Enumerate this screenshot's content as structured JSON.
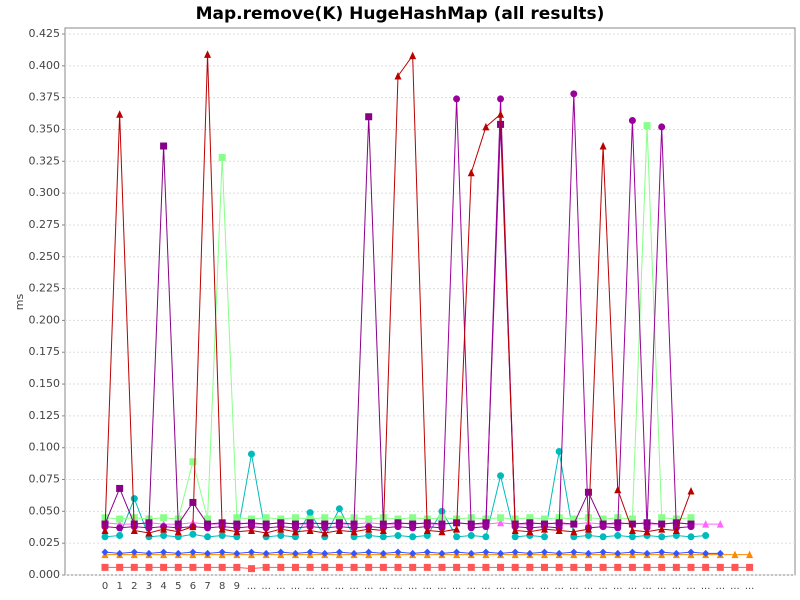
{
  "chart_data": {
    "type": "line",
    "title": "Map.remove(K) HugeHashMap (all results)",
    "y_label": "ms",
    "categories": [
      "0",
      "1",
      "2",
      "3",
      "4",
      "5",
      "6",
      "7",
      "8",
      "9",
      "...",
      "...",
      "...",
      "...",
      "...",
      "...",
      "...",
      "...",
      "...",
      "...",
      "...",
      "...",
      "...",
      "...",
      "...",
      "...",
      "...",
      "...",
      "...",
      "...",
      "...",
      "...",
      "...",
      "...",
      "...",
      "...",
      "...",
      "...",
      "...",
      "...",
      "...",
      "...",
      "...",
      "...",
      "..."
    ],
    "ylim": [
      0,
      0.425
    ],
    "yticks": [
      {
        "value": 0,
        "label": "0.000"
      },
      {
        "value": 0.025,
        "label": "0.025"
      },
      {
        "value": 0.05,
        "label": "0.050"
      },
      {
        "value": 0.075,
        "label": "0.075"
      },
      {
        "value": 0.1,
        "label": "0.100"
      },
      {
        "value": 0.125,
        "label": "0.125"
      },
      {
        "value": 0.15,
        "label": "0.150"
      },
      {
        "value": 0.175,
        "label": "0.175"
      },
      {
        "value": 0.2,
        "label": "0.200"
      },
      {
        "value": 0.225,
        "label": "0.225"
      },
      {
        "value": 0.25,
        "label": "0.250"
      },
      {
        "value": 0.275,
        "label": "0.275"
      },
      {
        "value": 0.3,
        "label": "0.300"
      },
      {
        "value": 0.325,
        "label": "0.325"
      },
      {
        "value": 0.35,
        "label": "0.350"
      },
      {
        "value": 0.375,
        "label": "0.375"
      },
      {
        "value": 0.4,
        "label": "0.400"
      },
      {
        "value": 0.425,
        "label": "0.425"
      }
    ],
    "grid": true,
    "series": [
      {
        "color": "#ff5555",
        "marker": "square",
        "values": [
          0.006,
          0.006,
          0.006,
          0.006,
          0.006,
          0.006,
          0.006,
          0.006,
          0.006,
          0.006,
          0.005,
          0.006,
          0.006,
          0.006,
          0.006,
          0.006,
          0.006,
          0.006,
          0.006,
          0.006,
          0.006,
          0.006,
          0.006,
          0.006,
          0.006,
          0.006,
          0.006,
          0.006,
          0.006,
          0.006,
          0.006,
          0.006,
          0.006,
          0.006,
          0.006,
          0.006,
          0.006,
          0.006,
          0.006,
          0.006,
          0.006,
          0.006,
          0.006,
          0.006,
          0.006
        ]
      },
      {
        "color": "#ff8800",
        "marker": "triangle",
        "values": [
          0.016,
          0.016,
          0.016,
          0.016,
          0.016,
          0.016,
          0.016,
          0.016,
          0.016,
          0.016,
          0.016,
          0.016,
          0.016,
          0.016,
          0.016,
          0.016,
          0.016,
          0.016,
          0.016,
          0.016,
          0.016,
          0.016,
          0.016,
          0.016,
          0.016,
          0.016,
          0.016,
          0.016,
          0.016,
          0.016,
          0.016,
          0.016,
          0.016,
          0.016,
          0.016,
          0.016,
          0.016,
          0.016,
          0.016,
          0.016,
          0.016,
          0.016,
          0.016,
          0.016,
          0.016
        ]
      },
      {
        "color": "#3355ff",
        "marker": "diamond",
        "values": [
          0.018,
          0.017,
          0.018,
          0.017,
          0.018,
          0.017,
          0.018,
          0.017,
          0.018,
          0.017,
          0.018,
          0.017,
          0.018,
          0.017,
          0.018,
          0.017,
          0.018,
          0.017,
          0.018,
          0.017,
          0.018,
          0.017,
          0.018,
          0.017,
          0.018,
          0.017,
          0.018,
          0.017,
          0.018,
          0.017,
          0.018,
          0.017,
          0.018,
          0.017,
          0.018,
          0.017,
          0.018,
          0.017,
          0.018,
          0.017,
          0.018,
          0.017,
          0.017,
          null,
          null
        ]
      },
      {
        "color": "#00bbbb",
        "marker": "circle",
        "values": [
          0.03,
          0.031,
          0.06,
          0.03,
          0.031,
          0.03,
          0.032,
          0.03,
          0.031,
          0.03,
          0.095,
          0.03,
          0.031,
          0.03,
          0.049,
          0.03,
          0.052,
          0.03,
          0.031,
          0.03,
          0.031,
          0.03,
          0.031,
          0.05,
          0.03,
          0.031,
          0.03,
          0.078,
          0.03,
          0.031,
          0.03,
          0.097,
          0.03,
          0.031,
          0.03,
          0.031,
          0.03,
          0.031,
          0.03,
          0.031,
          0.03,
          0.031,
          null,
          null,
          null
        ]
      },
      {
        "color": "#ff66ff",
        "marker": "triangle",
        "values": [
          0.041,
          0.04,
          0.04,
          0.041,
          0.04,
          0.04,
          0.041,
          0.04,
          0.04,
          0.041,
          0.04,
          0.04,
          0.041,
          0.04,
          0.04,
          0.041,
          0.04,
          0.04,
          0.041,
          0.04,
          0.04,
          0.041,
          0.04,
          0.04,
          0.041,
          0.04,
          0.04,
          0.041,
          0.04,
          0.04,
          0.041,
          0.04,
          0.04,
          0.041,
          0.04,
          0.04,
          0.041,
          0.04,
          0.04,
          0.041,
          0.04,
          0.04,
          0.04,
          null,
          null
        ]
      },
      {
        "color": "#88ff88",
        "marker": "square",
        "values": [
          0.045,
          0.044,
          0.045,
          0.044,
          0.045,
          0.044,
          0.089,
          0.044,
          0.328,
          0.045,
          0.044,
          0.045,
          0.044,
          0.045,
          0.044,
          0.045,
          0.044,
          0.045,
          0.044,
          0.045,
          0.044,
          0.045,
          0.044,
          0.045,
          0.044,
          0.045,
          0.044,
          0.045,
          0.044,
          0.045,
          0.044,
          0.045,
          0.044,
          0.045,
          0.044,
          0.045,
          0.044,
          0.353,
          0.045,
          0.044,
          0.045,
          null,
          null,
          null,
          null
        ]
      },
      {
        "color": "#880088",
        "marker": "square",
        "values": [
          0.04,
          0.068,
          0.04,
          0.041,
          0.337,
          0.04,
          0.057,
          0.04,
          0.041,
          0.04,
          0.041,
          0.04,
          0.041,
          0.04,
          0.041,
          0.04,
          0.041,
          0.04,
          0.36,
          0.04,
          0.041,
          0.04,
          0.041,
          0.04,
          0.041,
          0.04,
          0.041,
          0.354,
          0.04,
          0.041,
          0.04,
          0.041,
          0.04,
          0.065,
          0.04,
          0.041,
          0.04,
          0.041,
          0.04,
          0.041,
          0.04,
          null,
          null,
          null,
          null
        ]
      },
      {
        "color": "#990099",
        "marker": "circle",
        "values": [
          0.038,
          0.037,
          0.038,
          0.037,
          0.038,
          0.037,
          0.038,
          0.037,
          0.038,
          0.037,
          0.038,
          0.037,
          0.038,
          0.037,
          0.038,
          0.037,
          0.038,
          0.037,
          0.038,
          0.037,
          0.038,
          0.037,
          0.038,
          0.037,
          0.374,
          0.037,
          0.038,
          0.374,
          0.038,
          0.037,
          0.038,
          0.037,
          0.378,
          0.037,
          0.038,
          0.037,
          0.357,
          0.037,
          0.352,
          0.037,
          0.038,
          null,
          null,
          null,
          null
        ]
      },
      {
        "color": "#bb0000",
        "marker": "triangle",
        "values": [
          0.035,
          0.362,
          0.035,
          0.033,
          0.036,
          0.034,
          0.038,
          0.409,
          0.036,
          0.034,
          0.035,
          0.033,
          0.036,
          0.034,
          0.035,
          0.033,
          0.035,
          0.034,
          0.036,
          0.035,
          0.392,
          0.408,
          0.035,
          0.034,
          0.036,
          0.316,
          0.352,
          0.362,
          0.035,
          0.034,
          0.036,
          0.035,
          0.034,
          0.036,
          0.337,
          0.067,
          0.035,
          0.034,
          0.036,
          0.035,
          0.066,
          null,
          null,
          null,
          null
        ]
      }
    ]
  }
}
